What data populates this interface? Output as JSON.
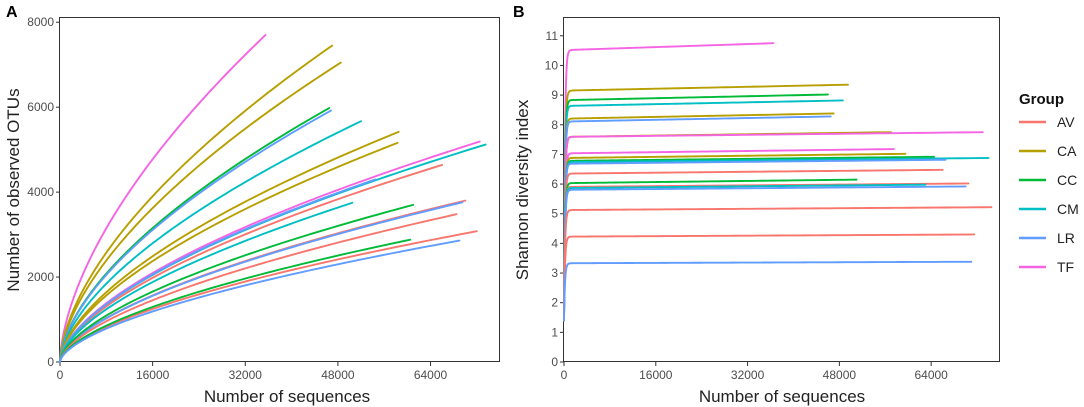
{
  "colors": {
    "AV": "#F8766D",
    "CA": "#B79F00",
    "CC": "#00BA38",
    "CM": "#00BFC4",
    "LR": "#619CFF",
    "TF": "#F564E3"
  },
  "legend": {
    "title": "Group",
    "items": [
      "AV",
      "CA",
      "CC",
      "CM",
      "LR",
      "TF"
    ]
  },
  "chart_data": [
    {
      "panel": "A",
      "type": "line",
      "title": "",
      "xlabel": "Number of sequences",
      "ylabel": "Number of observed OTUs",
      "xlim": [
        0,
        76000
      ],
      "ylim": [
        0,
        8100
      ],
      "xticks": [
        0,
        16000,
        32000,
        48000,
        64000
      ],
      "yticks": [
        0,
        2000,
        4000,
        6000,
        8000
      ],
      "curve_model": "y = final * (x/maxX)^exponent",
      "series": [
        {
          "group": "TF",
          "maxX": 35500,
          "final": 7700,
          "exponent": 0.6
        },
        {
          "group": "CA",
          "maxX": 47000,
          "final": 7450,
          "exponent": 0.6
        },
        {
          "group": "CA",
          "maxX": 48500,
          "final": 7050,
          "exponent": 0.6
        },
        {
          "group": "CC",
          "maxX": 46500,
          "final": 5980,
          "exponent": 0.6
        },
        {
          "group": "LR",
          "maxX": 46800,
          "final": 5920,
          "exponent": 0.6
        },
        {
          "group": "CM",
          "maxX": 52000,
          "final": 5670,
          "exponent": 0.6
        },
        {
          "group": "CA",
          "maxX": 58500,
          "final": 5420,
          "exponent": 0.6
        },
        {
          "group": "CA",
          "maxX": 58300,
          "final": 5160,
          "exponent": 0.6
        },
        {
          "group": "TF",
          "maxX": 72500,
          "final": 5190,
          "exponent": 0.6
        },
        {
          "group": "CM",
          "maxX": 73500,
          "final": 5120,
          "exponent": 0.6
        },
        {
          "group": "AV",
          "maxX": 66000,
          "final": 4640,
          "exponent": 0.6
        },
        {
          "group": "LR",
          "maxX": 54500,
          "final": 4300,
          "exponent": 0.6
        },
        {
          "group": "CM",
          "maxX": 50500,
          "final": 3750,
          "exponent": 0.6
        },
        {
          "group": "AV",
          "maxX": 70000,
          "final": 3800,
          "exponent": 0.6
        },
        {
          "group": "LR",
          "maxX": 69500,
          "final": 3760,
          "exponent": 0.6
        },
        {
          "group": "CC",
          "maxX": 61000,
          "final": 3700,
          "exponent": 0.6
        },
        {
          "group": "AV",
          "maxX": 68500,
          "final": 3480,
          "exponent": 0.6
        },
        {
          "group": "AV",
          "maxX": 72000,
          "final": 3080,
          "exponent": 0.6
        },
        {
          "group": "CC",
          "maxX": 60500,
          "final": 2880,
          "exponent": 0.6
        },
        {
          "group": "LR",
          "maxX": 69000,
          "final": 2860,
          "exponent": 0.6
        }
      ]
    },
    {
      "panel": "B",
      "type": "line",
      "title": "",
      "xlabel": "Number of sequences",
      "ylabel": "Shannon diversity index",
      "xlim": [
        0,
        76000
      ],
      "ylim": [
        0,
        11.6
      ],
      "xticks": [
        0,
        16000,
        32000,
        48000,
        64000
      ],
      "yticks": [
        0,
        1,
        2,
        3,
        4,
        5,
        6,
        7,
        8,
        9,
        10,
        11
      ],
      "series": [
        {
          "group": "TF",
          "maxX": 36500,
          "final": 10.75
        },
        {
          "group": "CA",
          "maxX": 49500,
          "final": 9.35
        },
        {
          "group": "CC",
          "maxX": 46000,
          "final": 9.02
        },
        {
          "group": "CM",
          "maxX": 48600,
          "final": 8.82
        },
        {
          "group": "CA",
          "maxX": 47000,
          "final": 8.38
        },
        {
          "group": "LR",
          "maxX": 46500,
          "final": 8.28
        },
        {
          "group": "CA",
          "maxX": 57000,
          "final": 7.75
        },
        {
          "group": "TF",
          "maxX": 73000,
          "final": 7.75
        },
        {
          "group": "TF",
          "maxX": 57500,
          "final": 7.18
        },
        {
          "group": "CA",
          "maxX": 59500,
          "final": 7.02
        },
        {
          "group": "CC",
          "maxX": 64500,
          "final": 6.92
        },
        {
          "group": "CM",
          "maxX": 74000,
          "final": 6.88
        },
        {
          "group": "LR",
          "maxX": 66500,
          "final": 6.82
        },
        {
          "group": "AV",
          "maxX": 66000,
          "final": 6.48
        },
        {
          "group": "CC",
          "maxX": 51000,
          "final": 6.15
        },
        {
          "group": "AV",
          "maxX": 70500,
          "final": 6.02
        },
        {
          "group": "CM",
          "maxX": 63000,
          "final": 5.98
        },
        {
          "group": "LR",
          "maxX": 70000,
          "final": 5.92
        },
        {
          "group": "AV",
          "maxX": 74500,
          "final": 5.22
        },
        {
          "group": "AV",
          "maxX": 71500,
          "final": 4.3
        },
        {
          "group": "LR",
          "maxX": 71000,
          "final": 3.38
        }
      ]
    }
  ]
}
